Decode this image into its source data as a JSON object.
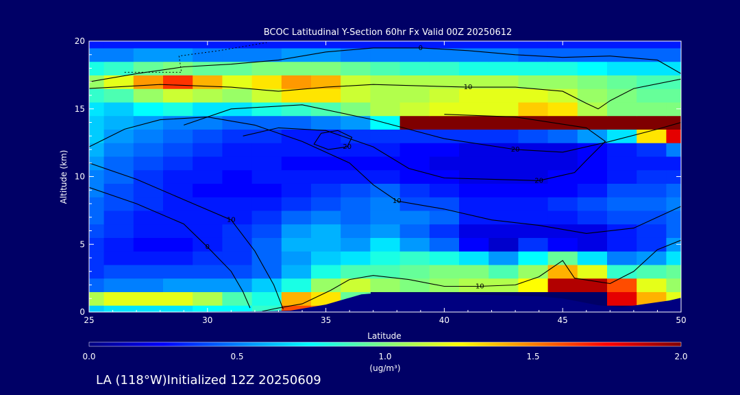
{
  "chart_data": {
    "type": "heatmap",
    "title": "BCOC Latitudinal Y-Section 60hr  Fx Valid 00Z 20250612",
    "xlabel": "Latitude",
    "ylabel": "Altitude (km)",
    "xlim": [
      25,
      50
    ],
    "ylim": [
      0,
      20
    ],
    "x_ticks": [
      "25",
      "30",
      "35",
      "40",
      "45",
      "50"
    ],
    "y_ticks": [
      "0",
      "5",
      "10",
      "15",
      "20"
    ],
    "colorbar": {
      "min": 0.0,
      "max": 2.0,
      "ticks": [
        "0.0",
        "0.5",
        "1.0",
        "1.5",
        "2.0"
      ],
      "units": "(ug/m³)",
      "colormap": [
        "#00007f",
        "#0000ff",
        "#007fff",
        "#00ffff",
        "#7fff7f",
        "#ffff00",
        "#ff7f00",
        "#ff0000",
        "#7f0000"
      ]
    },
    "x": [
      25,
      26.25,
      27.5,
      28.75,
      30,
      31.25,
      32.5,
      33.75,
      35,
      36.25,
      37.5,
      38.75,
      40,
      41.25,
      42.5,
      43.75,
      45,
      46.25,
      47.5,
      48.75,
      50
    ],
    "y": [
      0,
      1,
      2,
      3,
      4,
      5,
      6,
      7,
      8,
      9,
      10,
      11,
      12,
      13,
      14,
      15,
      16,
      17,
      18,
      19,
      20
    ],
    "z": [
      [
        0.65,
        0.7,
        0.7,
        0.7,
        0.75,
        0.75,
        0.85,
        1.6,
        1.5,
        null,
        null,
        null,
        null,
        null,
        null,
        null,
        null,
        null,
        null,
        0.8,
        null
      ],
      [
        1.1,
        1.2,
        1.2,
        1.2,
        1.1,
        0.9,
        0.8,
        1.4,
        1.3,
        0.95,
        null,
        null,
        null,
        null,
        null,
        null,
        null,
        null,
        1.8,
        1.4,
        1.2
      ],
      [
        0.45,
        0.5,
        0.5,
        0.55,
        0.55,
        0.55,
        0.65,
        0.8,
        1.05,
        1.15,
        1.05,
        1.0,
        1.05,
        1.1,
        1.1,
        1.25,
        1.9,
        1.9,
        1.6,
        1.2,
        1.05
      ],
      [
        0.35,
        0.4,
        0.4,
        0.4,
        0.4,
        0.4,
        0.45,
        0.6,
        0.8,
        0.9,
        0.9,
        0.95,
        1.0,
        1.0,
        0.9,
        1.05,
        1.4,
        1.2,
        0.85,
        0.9,
        0.95
      ],
      [
        0.35,
        0.3,
        0.3,
        0.3,
        0.35,
        0.35,
        0.45,
        0.55,
        0.65,
        0.7,
        0.8,
        0.85,
        0.8,
        0.7,
        0.55,
        0.75,
        0.95,
        0.7,
        0.5,
        0.55,
        0.7
      ],
      [
        0.35,
        0.3,
        0.25,
        0.25,
        0.3,
        0.35,
        0.45,
        0.6,
        0.6,
        0.55,
        0.7,
        0.55,
        0.45,
        0.25,
        0.15,
        0.35,
        0.25,
        0.2,
        0.3,
        0.35,
        0.55
      ],
      [
        0.4,
        0.35,
        0.3,
        0.3,
        0.3,
        0.35,
        0.4,
        0.55,
        0.6,
        0.5,
        0.55,
        0.45,
        0.35,
        0.2,
        0.2,
        0.2,
        0.2,
        0.2,
        0.3,
        0.35,
        0.45
      ],
      [
        0.45,
        0.35,
        0.3,
        0.3,
        0.3,
        0.3,
        0.35,
        0.45,
        0.5,
        0.45,
        0.5,
        0.5,
        0.45,
        0.3,
        0.3,
        0.3,
        0.3,
        0.35,
        0.4,
        0.4,
        0.45
      ],
      [
        0.45,
        0.4,
        0.35,
        0.3,
        0.3,
        0.3,
        0.3,
        0.35,
        0.4,
        0.45,
        0.5,
        0.4,
        0.4,
        0.3,
        0.3,
        0.3,
        0.35,
        0.4,
        0.45,
        0.45,
        0.5
      ],
      [
        0.5,
        0.4,
        0.35,
        0.3,
        0.25,
        0.25,
        0.25,
        0.3,
        0.35,
        0.4,
        0.45,
        0.35,
        0.3,
        0.25,
        0.25,
        0.25,
        0.25,
        0.3,
        0.4,
        0.4,
        0.45
      ],
      [
        0.5,
        0.45,
        0.35,
        0.3,
        0.3,
        0.25,
        0.3,
        0.3,
        0.3,
        0.3,
        0.3,
        0.25,
        0.25,
        0.2,
        0.2,
        0.2,
        0.25,
        0.25,
        0.3,
        0.35,
        0.35
      ],
      [
        0.55,
        0.45,
        0.4,
        0.35,
        0.3,
        0.3,
        0.3,
        0.25,
        0.25,
        0.25,
        0.25,
        0.25,
        0.2,
        0.2,
        0.2,
        0.2,
        0.2,
        0.25,
        0.3,
        0.3,
        0.3
      ],
      [
        0.6,
        0.5,
        0.45,
        0.4,
        0.35,
        0.3,
        0.3,
        0.3,
        0.3,
        0.3,
        0.3,
        0.25,
        0.25,
        0.2,
        0.2,
        0.2,
        0.2,
        0.25,
        0.3,
        0.35,
        0.5
      ],
      [
        0.65,
        0.55,
        0.5,
        0.45,
        0.4,
        0.35,
        0.35,
        0.3,
        0.3,
        0.35,
        0.35,
        0.35,
        0.35,
        0.35,
        0.35,
        0.4,
        0.45,
        0.55,
        0.7,
        1.3,
        1.8
      ],
      [
        0.65,
        0.6,
        0.55,
        0.5,
        0.5,
        0.45,
        0.45,
        0.45,
        0.5,
        0.55,
        0.75,
        2.0,
        2.0,
        2.0,
        2.0,
        2.0,
        2.0,
        2.0,
        2.0,
        2.0,
        2.0
      ],
      [
        0.7,
        0.65,
        0.75,
        0.8,
        0.7,
        0.7,
        0.8,
        0.85,
        0.9,
        1.0,
        1.1,
        1.15,
        1.2,
        1.2,
        1.2,
        1.35,
        1.3,
        1.1,
        1.0,
        1.0,
        1.0
      ],
      [
        0.85,
        0.9,
        1.05,
        1.15,
        1.1,
        1.05,
        1.15,
        1.3,
        1.3,
        1.15,
        1.1,
        1.1,
        1.15,
        1.2,
        1.2,
        1.2,
        1.15,
        1.05,
        1.0,
        0.95,
        0.95
      ],
      [
        1.05,
        1.2,
        1.45,
        1.65,
        1.4,
        1.2,
        1.3,
        1.45,
        1.4,
        1.15,
        1.1,
        1.1,
        1.1,
        1.1,
        1.1,
        1.05,
        1.05,
        1.0,
        0.95,
        0.9,
        0.9
      ],
      [
        0.8,
        0.85,
        0.95,
        1.0,
        0.95,
        0.95,
        1.0,
        1.0,
        1.0,
        0.95,
        0.9,
        0.85,
        0.85,
        0.8,
        0.8,
        0.8,
        0.8,
        0.75,
        0.7,
        0.7,
        0.7
      ],
      [
        0.5,
        0.5,
        0.55,
        0.55,
        0.5,
        0.5,
        0.5,
        0.55,
        0.55,
        0.5,
        0.5,
        0.5,
        0.5,
        0.5,
        0.5,
        0.45,
        0.45,
        0.45,
        0.45,
        0.45,
        0.45
      ],
      [
        0.3,
        0.3,
        0.3,
        0.3,
        0.3,
        0.3,
        0.3,
        0.3,
        0.3,
        0.3,
        0.3,
        0.3,
        0.3,
        0.3,
        0.3,
        0.3,
        0.3,
        0.3,
        0.3,
        0.3,
        0.3
      ]
    ],
    "terrain_km": [
      [
        25,
        0
      ],
      [
        32,
        0.05
      ],
      [
        33.5,
        0.1
      ],
      [
        35,
        0.55
      ],
      [
        36.5,
        1.3
      ],
      [
        37.5,
        1.45
      ],
      [
        38.5,
        1.4
      ],
      [
        40,
        1.35
      ],
      [
        42,
        1.25
      ],
      [
        44,
        1.15
      ],
      [
        45,
        1.0
      ],
      [
        46.5,
        0.5
      ],
      [
        47.5,
        0.35
      ],
      [
        48.5,
        0.6
      ],
      [
        49.5,
        0.85
      ],
      [
        50,
        1.05
      ]
    ],
    "contours": [
      {
        "label": "0",
        "points": [
          [
            25,
            9.2
          ],
          [
            27,
            8.0
          ],
          [
            29,
            6.5
          ],
          [
            30,
            4.8
          ],
          [
            31,
            3.0
          ],
          [
            31.5,
            1.5
          ],
          [
            31.8,
            0.3
          ]
        ]
      },
      {
        "label": "10",
        "points": [
          [
            25,
            11.0
          ],
          [
            27,
            9.8
          ],
          [
            29,
            8.3
          ],
          [
            31,
            6.8
          ],
          [
            32,
            4.5
          ],
          [
            32.8,
            2.0
          ],
          [
            33.2,
            0.2
          ]
        ]
      },
      {
        "label": "10",
        "points": [
          [
            25,
            12.2
          ],
          [
            26.5,
            13.5
          ],
          [
            28,
            14.2
          ],
          [
            30,
            14.4
          ],
          [
            32,
            13.8
          ],
          [
            34,
            12.6
          ],
          [
            36,
            11.0
          ],
          [
            37,
            9.4
          ],
          [
            38,
            8.2
          ],
          [
            40,
            7.6
          ],
          [
            42,
            6.8
          ],
          [
            44,
            6.4
          ],
          [
            46,
            5.8
          ],
          [
            48,
            6.2
          ],
          [
            49,
            7.0
          ],
          [
            50,
            7.8
          ]
        ]
      },
      {
        "label": "20",
        "points": [
          [
            29,
            13.8
          ],
          [
            31,
            15.0
          ],
          [
            34,
            15.3
          ],
          [
            37,
            14.2
          ],
          [
            40,
            12.8
          ],
          [
            43,
            12.0
          ],
          [
            45,
            11.8
          ],
          [
            47,
            12.6
          ],
          [
            49,
            13.5
          ],
          [
            50,
            14.0
          ]
        ]
      },
      {
        "label": "20",
        "points": [
          [
            31.5,
            13.0
          ],
          [
            33,
            13.6
          ],
          [
            35,
            13.4
          ],
          [
            37,
            12.2
          ],
          [
            38.5,
            10.6
          ],
          [
            40,
            9.9
          ],
          [
            42,
            9.8
          ],
          [
            44,
            9.7
          ],
          [
            45.5,
            10.3
          ],
          [
            46,
            11.2
          ],
          [
            46.8,
            12.6
          ],
          [
            46,
            13.6
          ],
          [
            43,
            14.4
          ],
          [
            40,
            14.6
          ]
        ]
      },
      {
        "label": "20",
        "points": [
          [
            34.8,
            13.2
          ],
          [
            35.5,
            13.4
          ],
          [
            36.1,
            12.9
          ],
          [
            35.9,
            12.2
          ],
          [
            35.1,
            12.0
          ],
          [
            34.5,
            12.4
          ],
          [
            34.8,
            13.2
          ]
        ]
      },
      {
        "label": "10",
        "points": [
          [
            25,
            16.5
          ],
          [
            28,
            16.8
          ],
          [
            31,
            16.6
          ],
          [
            33,
            16.3
          ],
          [
            35,
            16.6
          ],
          [
            37,
            16.8
          ],
          [
            39,
            16.7
          ],
          [
            41,
            16.6
          ],
          [
            43,
            16.6
          ],
          [
            45,
            16.3
          ],
          [
            46,
            15.4
          ],
          [
            46.5,
            15.0
          ],
          [
            47,
            15.6
          ],
          [
            48,
            16.5
          ],
          [
            50,
            17.2
          ]
        ]
      },
      {
        "label": "0",
        "points": [
          [
            25,
            17.0
          ],
          [
            27,
            17.6
          ],
          [
            29,
            18.1
          ],
          [
            31,
            18.3
          ],
          [
            33,
            18.6
          ],
          [
            35,
            19.2
          ],
          [
            37,
            19.5
          ],
          [
            39,
            19.5
          ],
          [
            41,
            19.3
          ],
          [
            43,
            19.0
          ],
          [
            45,
            18.8
          ],
          [
            47,
            18.9
          ],
          [
            49,
            18.6
          ],
          [
            50,
            17.6
          ]
        ]
      },
      {
        "label": "10",
        "points": [
          [
            32.3,
            0.05
          ],
          [
            33,
            0.3
          ],
          [
            34,
            0.6
          ],
          [
            35.2,
            1.6
          ],
          [
            36,
            2.4
          ],
          [
            37,
            2.7
          ],
          [
            38.5,
            2.4
          ],
          [
            40,
            1.9
          ],
          [
            41.5,
            1.9
          ],
          [
            43,
            2.0
          ],
          [
            44,
            2.6
          ],
          [
            45,
            3.8
          ],
          [
            45.5,
            2.5
          ],
          [
            47,
            2.1
          ],
          [
            48,
            3.0
          ],
          [
            49,
            4.6
          ],
          [
            50,
            5.3
          ]
        ]
      }
    ],
    "dotted_lines": [
      {
        "points": [
          [
            26.5,
            17.7
          ],
          [
            28.9,
            17.7
          ],
          [
            28.8,
            18.9
          ],
          [
            30.5,
            19.3
          ],
          [
            31.5,
            19.6
          ],
          [
            32.5,
            19.9
          ]
        ]
      }
    ]
  },
  "footer": {
    "location_text": "LA (118°W)Initialized 12Z 20250609"
  }
}
